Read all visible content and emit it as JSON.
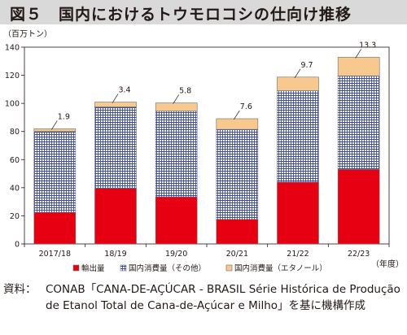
{
  "header": {
    "title": "図５　国内におけるトウモロコシの仕向け推移"
  },
  "chart_data": {
    "type": "bar",
    "stacked": true,
    "unit_label": "（百万トン）",
    "xlabel": "（年度）",
    "ylim": [
      0,
      140
    ],
    "yticks": [
      0,
      20,
      40,
      60,
      80,
      100,
      120,
      140
    ],
    "categories": [
      "2017/18",
      "18/19",
      "19/20",
      "20/21",
      "21/22",
      "22/23"
    ],
    "series": [
      {
        "name": "輸出量",
        "color": "#e60012",
        "pattern": "solid",
        "values": [
          22.5,
          39.5,
          33.5,
          17.5,
          44.0,
          53.0
        ]
      },
      {
        "name": "国内消費量（その他）",
        "color": "#3d4ca3",
        "pattern": "grid",
        "values": [
          57.5,
          58.0,
          61.0,
          64.0,
          65.0,
          66.5
        ]
      },
      {
        "name": "国内消費量（エタノール）",
        "color": "#f8c98e",
        "pattern": "solid",
        "values": [
          1.9,
          3.4,
          5.8,
          7.6,
          9.7,
          13.3
        ]
      }
    ],
    "annotations": [
      "1.9",
      "3.4",
      "5.8",
      "7.6",
      "9.7",
      "13.3"
    ],
    "grid": false,
    "legend_position": "bottom"
  },
  "source": {
    "label": "資料：",
    "text": "CONAB「CANA-DE-AÇÚCAR - BRASIL Série Histórica de Produção de Etanol Total de Cana-de-Açúcar e Milho」を基に機構作成"
  }
}
